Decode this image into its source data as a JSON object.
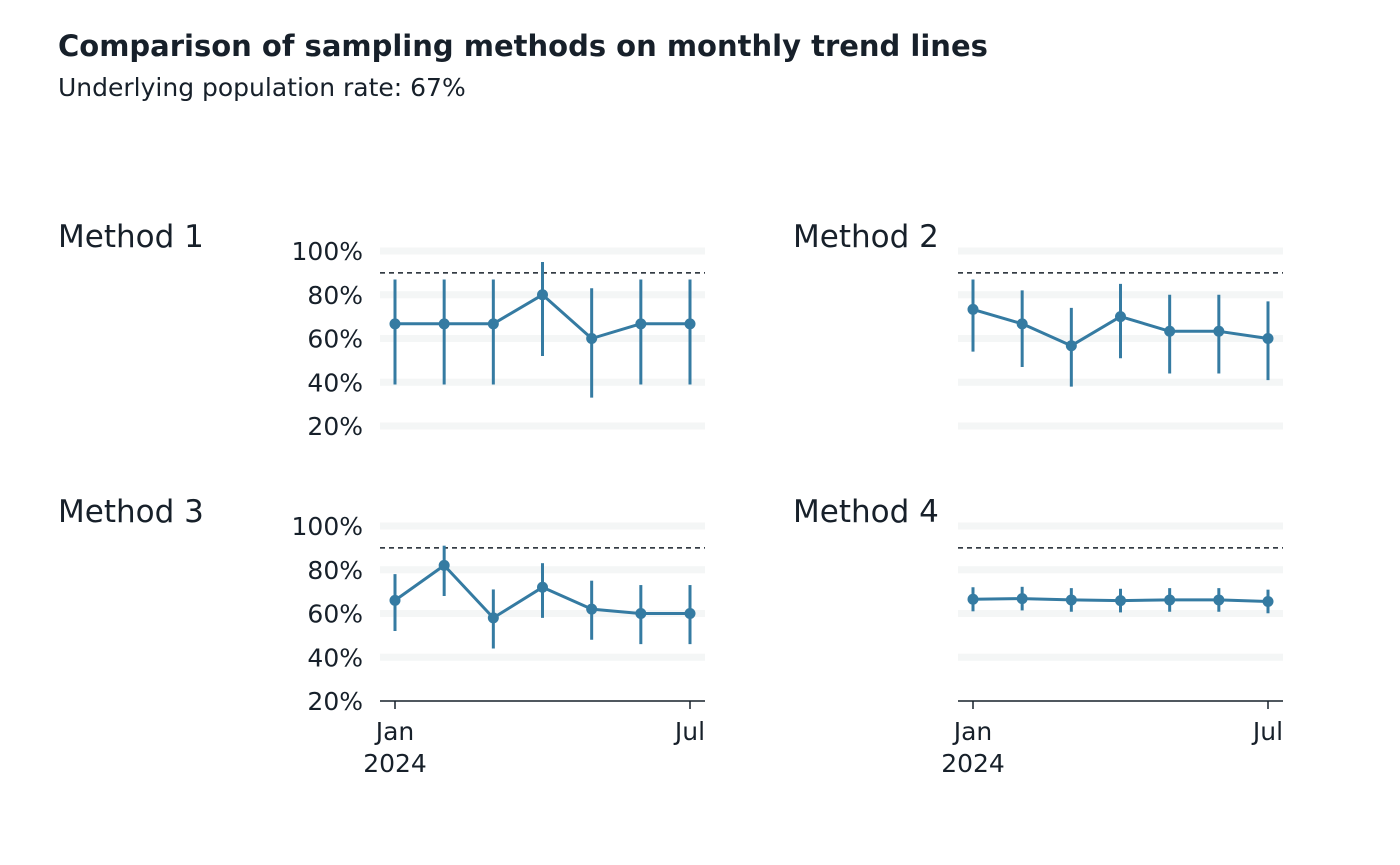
{
  "title": "Comparison of sampling methods on monthly trend lines",
  "subtitle": "Underlying population rate: 67%",
  "chart_data": {
    "type": "line",
    "y_axis": {
      "ticks": [
        0.2,
        0.4,
        0.6,
        0.8,
        1.0
      ],
      "tick_labels": [
        "20%",
        "40%",
        "60%",
        "80%",
        "100%"
      ],
      "range": [
        0.2,
        1.0
      ]
    },
    "x_axis": {
      "values": [
        "2024-01",
        "2024-02",
        "2024-03",
        "2024-04",
        "2024-05",
        "2024-06",
        "2024-07"
      ],
      "ticks": [
        "2024-01",
        "2024-07"
      ],
      "tick_labels": [
        [
          "Jan",
          "2024"
        ],
        [
          "Jul"
        ]
      ]
    },
    "reference_line": {
      "y": 0.9,
      "style": "dashed"
    },
    "grid": "horizontal bands",
    "color": "#357ba2",
    "panels": [
      {
        "label": "Method 1",
        "points": [
          {
            "x": "2024-01",
            "y": 0.667,
            "low": 0.39,
            "high": 0.87
          },
          {
            "x": "2024-02",
            "y": 0.667,
            "low": 0.39,
            "high": 0.87
          },
          {
            "x": "2024-03",
            "y": 0.667,
            "low": 0.39,
            "high": 0.87
          },
          {
            "x": "2024-04",
            "y": 0.8,
            "low": 0.52,
            "high": 0.95
          },
          {
            "x": "2024-05",
            "y": 0.6,
            "low": 0.33,
            "high": 0.83
          },
          {
            "x": "2024-06",
            "y": 0.667,
            "low": 0.39,
            "high": 0.87
          },
          {
            "x": "2024-07",
            "y": 0.667,
            "low": 0.39,
            "high": 0.87
          }
        ]
      },
      {
        "label": "Method 2",
        "points": [
          {
            "x": "2024-01",
            "y": 0.733,
            "low": 0.54,
            "high": 0.87
          },
          {
            "x": "2024-02",
            "y": 0.667,
            "low": 0.47,
            "high": 0.82
          },
          {
            "x": "2024-03",
            "y": 0.567,
            "low": 0.38,
            "high": 0.74
          },
          {
            "x": "2024-04",
            "y": 0.7,
            "low": 0.51,
            "high": 0.85
          },
          {
            "x": "2024-05",
            "y": 0.633,
            "low": 0.44,
            "high": 0.8
          },
          {
            "x": "2024-06",
            "y": 0.633,
            "low": 0.44,
            "high": 0.8
          },
          {
            "x": "2024-07",
            "y": 0.6,
            "low": 0.41,
            "high": 0.77
          }
        ]
      },
      {
        "label": "Method 3",
        "points": [
          {
            "x": "2024-01",
            "y": 0.66,
            "low": 0.52,
            "high": 0.78
          },
          {
            "x": "2024-02",
            "y": 0.82,
            "low": 0.68,
            "high": 0.91
          },
          {
            "x": "2024-03",
            "y": 0.58,
            "low": 0.44,
            "high": 0.71
          },
          {
            "x": "2024-04",
            "y": 0.72,
            "low": 0.58,
            "high": 0.83
          },
          {
            "x": "2024-05",
            "y": 0.62,
            "low": 0.48,
            "high": 0.75
          },
          {
            "x": "2024-06",
            "y": 0.6,
            "low": 0.46,
            "high": 0.73
          },
          {
            "x": "2024-07",
            "y": 0.6,
            "low": 0.46,
            "high": 0.73
          }
        ]
      },
      {
        "label": "Method 4",
        "points": [
          {
            "x": "2024-01",
            "y": 0.665,
            "low": 0.61,
            "high": 0.72
          },
          {
            "x": "2024-02",
            "y": 0.668,
            "low": 0.614,
            "high": 0.722
          },
          {
            "x": "2024-03",
            "y": 0.662,
            "low": 0.608,
            "high": 0.716
          },
          {
            "x": "2024-04",
            "y": 0.659,
            "low": 0.605,
            "high": 0.713
          },
          {
            "x": "2024-05",
            "y": 0.662,
            "low": 0.608,
            "high": 0.716
          },
          {
            "x": "2024-06",
            "y": 0.662,
            "low": 0.608,
            "high": 0.716
          },
          {
            "x": "2024-07",
            "y": 0.655,
            "low": 0.601,
            "high": 0.709
          }
        ]
      }
    ]
  }
}
